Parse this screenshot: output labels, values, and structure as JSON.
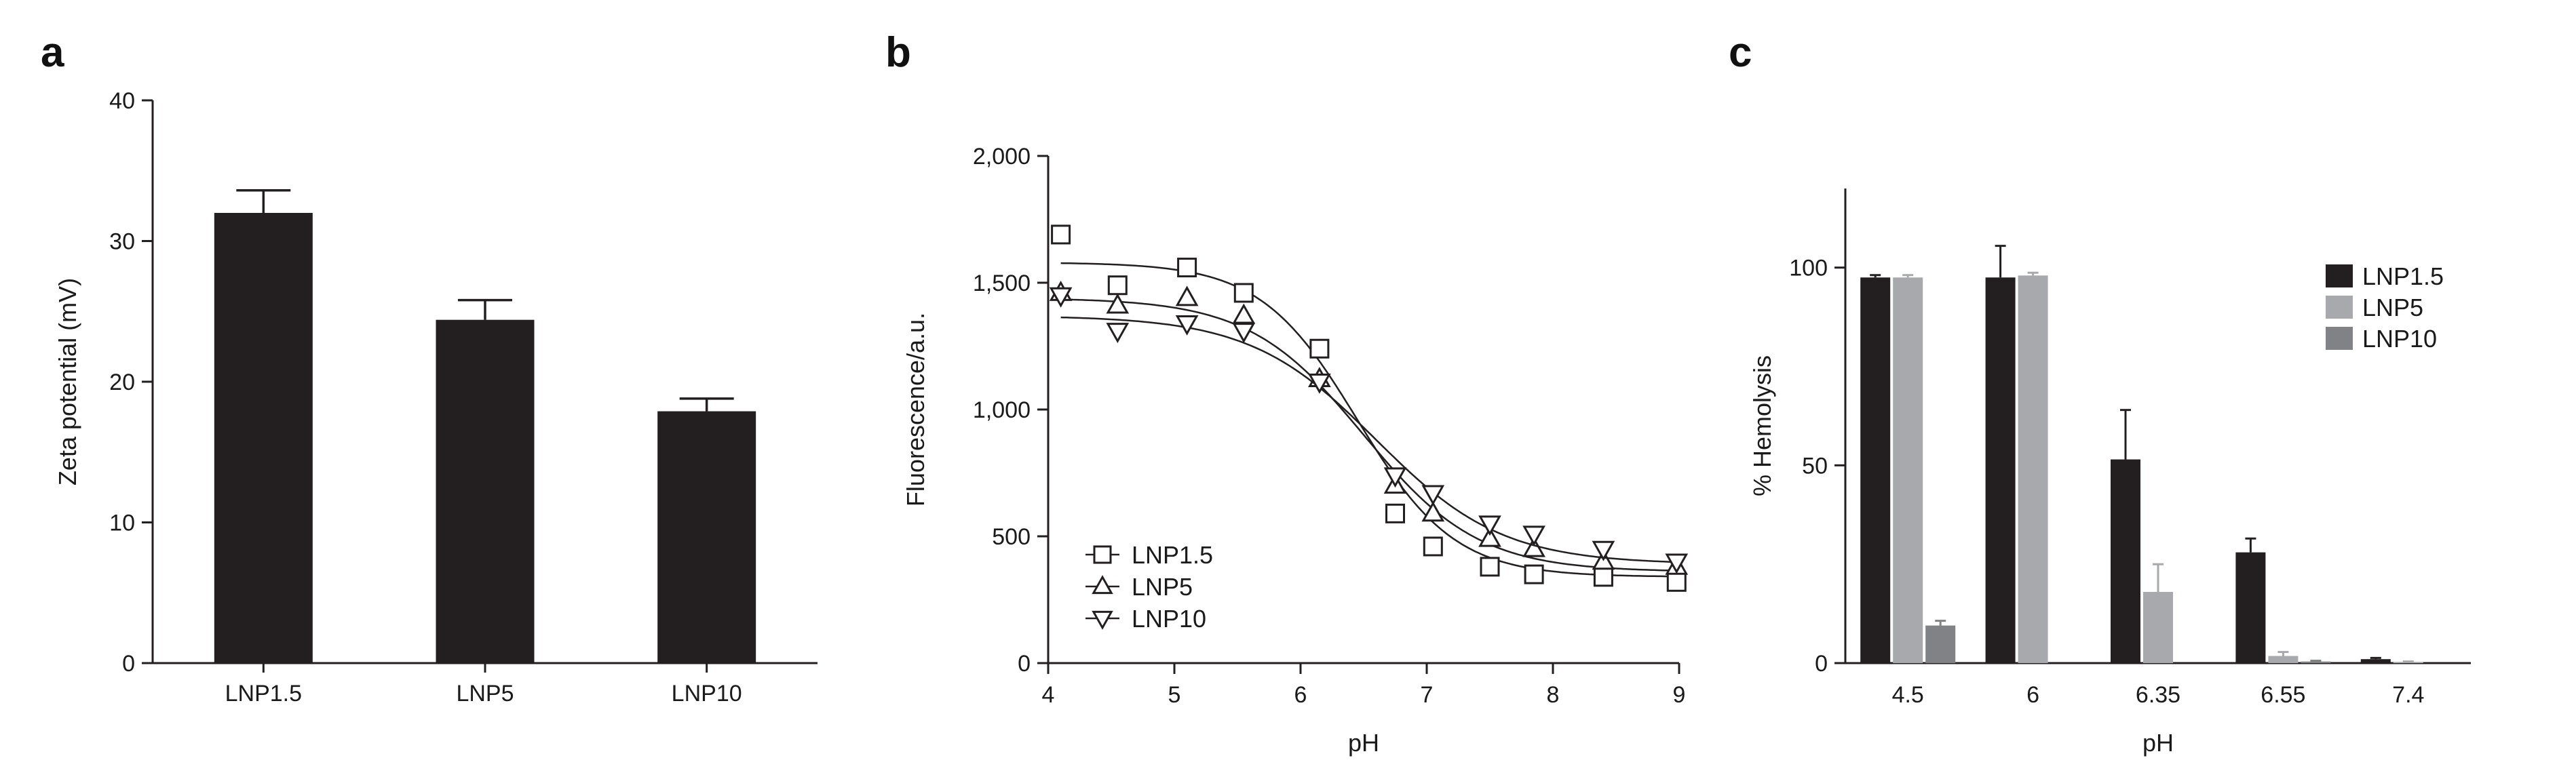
{
  "panels": {
    "a": {
      "letter": "a"
    },
    "b": {
      "letter": "b"
    },
    "c": {
      "letter": "c"
    }
  },
  "chart_data": [
    {
      "panel": "a",
      "type": "bar",
      "categories": [
        "LNP1.5",
        "LNP5",
        "LNP10"
      ],
      "values": [
        32.0,
        24.4,
        17.9
      ],
      "errors": [
        1.6,
        1.4,
        0.9
      ],
      "ylabel": "Zeta potential (mV)",
      "xlabel": "",
      "ylim": [
        0,
        40
      ],
      "yticks": [
        0,
        10,
        20,
        30,
        40
      ],
      "ytick_labels": [
        "0",
        "10",
        "20",
        "30",
        "40"
      ],
      "bar_color": "#231f20"
    },
    {
      "panel": "b",
      "type": "scatter",
      "xlabel": "pH",
      "ylabel": "Fluorescence/a.u.",
      "xlim": [
        4,
        9
      ],
      "ylim": [
        0,
        2000
      ],
      "xticks": [
        4,
        5,
        6,
        7,
        8,
        9
      ],
      "xtick_labels": [
        "4",
        "5",
        "6",
        "7",
        "8",
        "9"
      ],
      "yticks": [
        0,
        500,
        1000,
        1500,
        2000
      ],
      "ytick_labels": [
        "0",
        "500",
        "1,000",
        "1,500",
        "2,000"
      ],
      "legend_position": "lower-left",
      "series": [
        {
          "name": "LNP1.5",
          "marker": "square",
          "x": [
            4.1,
            4.55,
            5.1,
            5.55,
            6.15,
            6.75,
            7.05,
            7.5,
            7.85,
            8.4,
            8.98
          ],
          "y": [
            1690,
            1490,
            1560,
            1460,
            1240,
            590,
            460,
            380,
            350,
            340,
            320
          ],
          "fit": {
            "top": 1580,
            "bottom": 340,
            "ec50": 6.45,
            "slope": 2.6
          }
        },
        {
          "name": "LNP5",
          "marker": "triangle-up",
          "x": [
            4.1,
            4.55,
            5.1,
            5.55,
            6.15,
            6.75,
            7.05,
            7.5,
            7.85,
            8.4,
            8.98
          ],
          "y": [
            1460,
            1410,
            1440,
            1370,
            1120,
            700,
            590,
            490,
            450,
            400,
            380
          ],
          "fit": {
            "top": 1440,
            "bottom": 360,
            "ec50": 6.5,
            "slope": 2.2
          }
        },
        {
          "name": "LNP10",
          "marker": "triangle-down",
          "x": [
            4.1,
            4.55,
            5.1,
            5.55,
            6.15,
            6.75,
            7.05,
            7.5,
            7.85,
            8.4,
            8.98
          ],
          "y": [
            1450,
            1310,
            1340,
            1310,
            1110,
            740,
            670,
            550,
            510,
            450,
            400
          ],
          "fit": {
            "top": 1370,
            "bottom": 390,
            "ec50": 6.6,
            "slope": 2.0
          }
        }
      ]
    },
    {
      "panel": "c",
      "type": "bar",
      "categories": [
        "4.5",
        "6",
        "6.35",
        "6.55",
        "7.4"
      ],
      "xlabel": "pH",
      "ylabel": "% Hemolysis",
      "ylim": [
        0,
        120
      ],
      "yticks": [
        0,
        50,
        100
      ],
      "ytick_labels": [
        "0",
        "50",
        "100"
      ],
      "legend_position": "top-right",
      "series": [
        {
          "name": "LNP1.5",
          "color": "#231f20",
          "values": [
            97.5,
            97.5,
            51.5,
            28.0,
            1.0
          ],
          "errors": [
            0.6,
            8.0,
            12.5,
            3.5,
            0.3
          ]
        },
        {
          "name": "LNP5",
          "color": "#a7a9ac",
          "values": [
            97.5,
            98.0,
            18.0,
            1.8,
            0.3
          ],
          "errors": [
            0.6,
            0.7,
            7.0,
            1.0,
            0.1
          ]
        },
        {
          "name": "LNP10",
          "color": "#808285",
          "values": [
            9.5,
            null,
            null,
            0.4,
            null
          ],
          "errors": [
            1.2,
            null,
            null,
            0.2,
            null
          ]
        }
      ]
    }
  ]
}
